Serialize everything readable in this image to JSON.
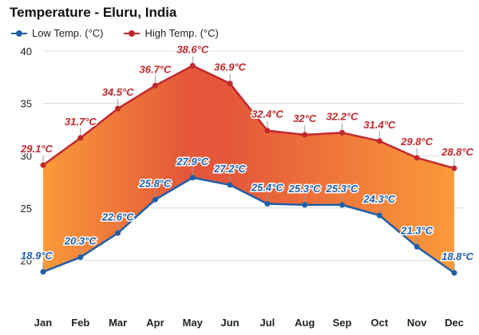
{
  "chart_data": {
    "type": "line",
    "title": "Temperature - Eluru, India",
    "categories": [
      "Jan",
      "Feb",
      "Mar",
      "Apr",
      "May",
      "Jun",
      "Jul",
      "Aug",
      "Sep",
      "Oct",
      "Nov",
      "Dec"
    ],
    "series": [
      {
        "name": "Low Temp. (°C)",
        "color": "#1f5fa8",
        "values": [
          18.9,
          20.3,
          22.6,
          25.8,
          27.9,
          27.2,
          25.4,
          25.3,
          25.3,
          24.3,
          21.3,
          18.8
        ],
        "labels": [
          "18.9°C",
          "20.3°C",
          "22.6°C",
          "25.8°C",
          "27.9°C",
          "27.2°C",
          "25.4°C",
          "25.3°C",
          "25.3°C",
          "24.3°C",
          "21.3°C",
          "18.8°C"
        ]
      },
      {
        "name": "High Temp. (°C)",
        "color": "#c0282d",
        "values": [
          29.1,
          31.7,
          34.5,
          36.7,
          38.6,
          36.9,
          32.4,
          32.0,
          32.2,
          31.4,
          29.8,
          28.8
        ],
        "labels": [
          "29.1°C",
          "31.7°C",
          "34.5°C",
          "36.7°C",
          "38.6°C",
          "36.9°C",
          "32.4°C",
          "32°C",
          "32.2°C",
          "31.4°C",
          "29.8°C",
          "28.8°C"
        ]
      }
    ],
    "y_ticks": [
      "20",
      "25",
      "30",
      "35",
      "40"
    ],
    "ylim": [
      15,
      40
    ],
    "grid": true,
    "legend_position": "top-left",
    "fill_between": {
      "hot_color": "#e4573a",
      "warm_color": "#fb9a3a"
    }
  }
}
